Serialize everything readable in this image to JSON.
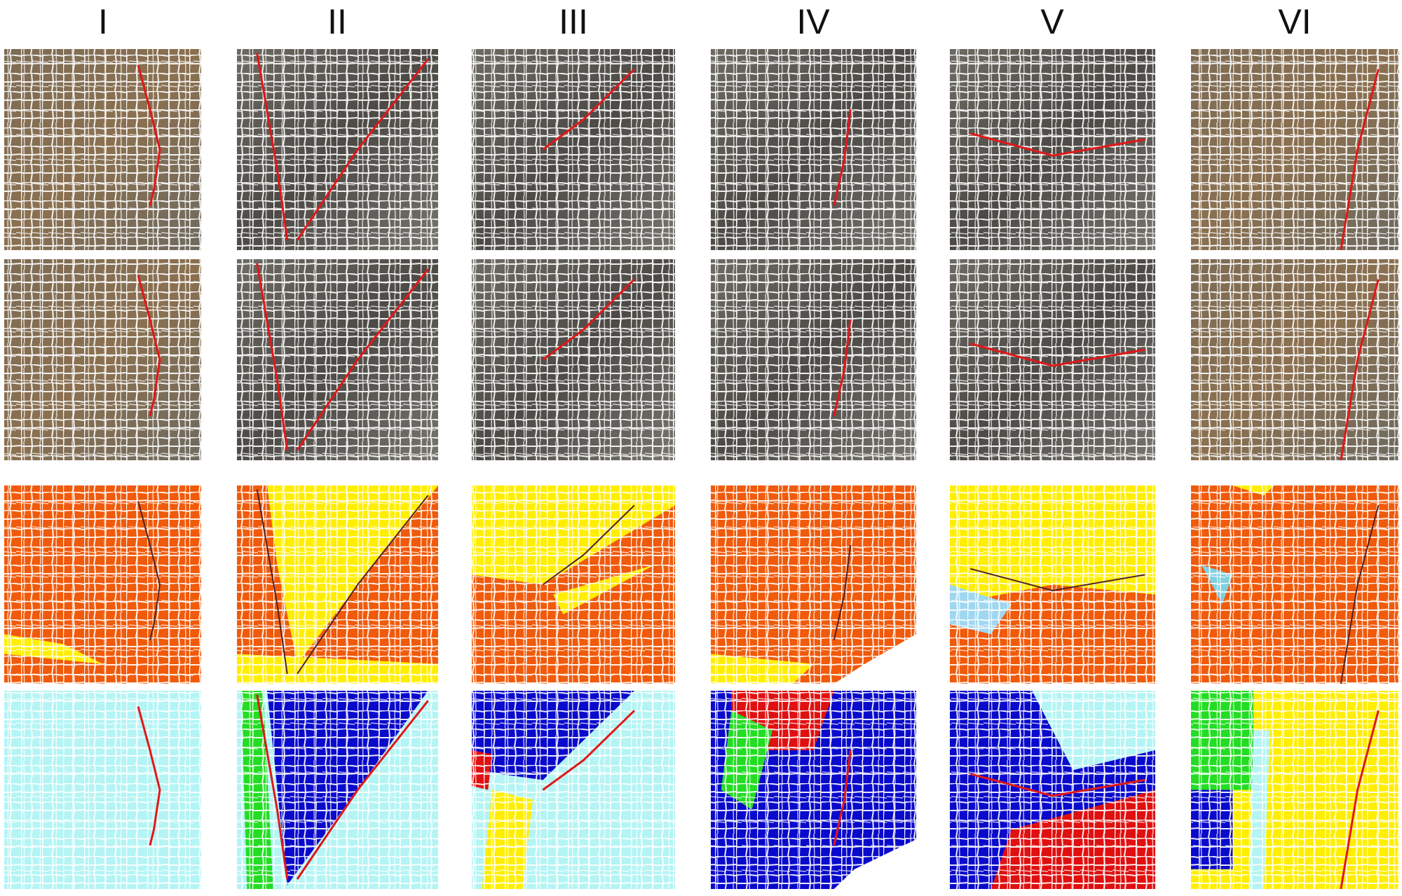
{
  "columns": [
    {
      "label": "I"
    },
    {
      "label": "II"
    },
    {
      "label": "III"
    },
    {
      "label": "IV"
    },
    {
      "label": "V"
    },
    {
      "label": "VI"
    }
  ],
  "colors": {
    "crack": "#e01818",
    "cell_boundary": "#ffffff",
    "orange": "#f05a0a",
    "yellow": "#ffee00",
    "light_cyan": "#b4f4f4",
    "blue": "#0a0acc",
    "red": "#e01010",
    "green": "#22dd22"
  }
}
